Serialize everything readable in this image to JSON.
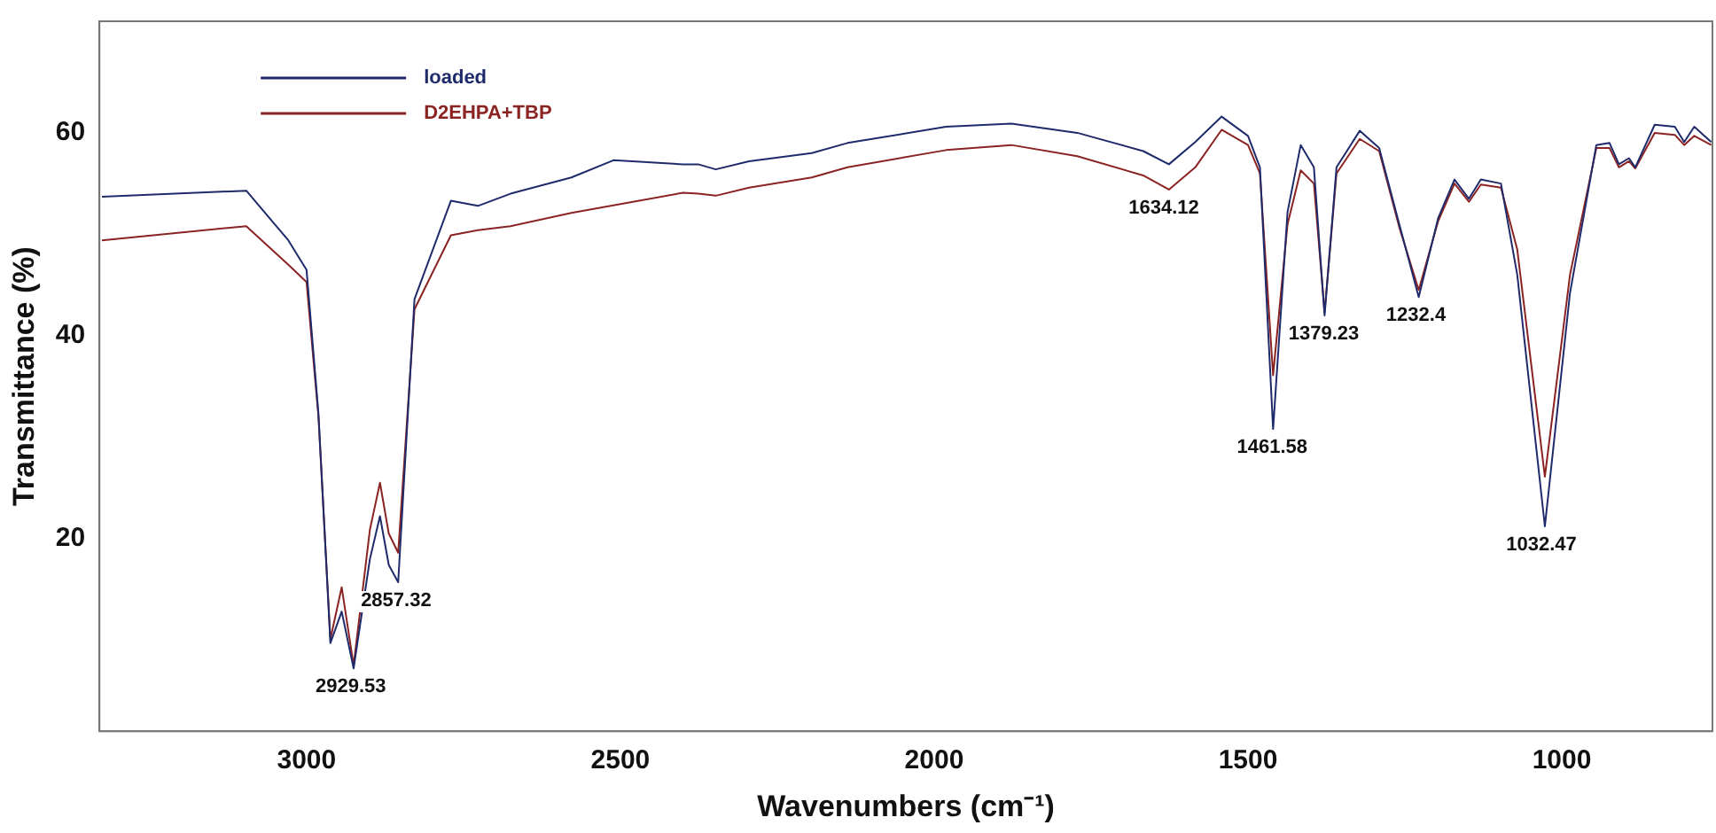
{
  "chart_data": {
    "type": "line",
    "xlabel": "Wavenumbers (cm⁻¹)",
    "ylabel": "Transmittance (%)",
    "xlim": [
      3330,
      760
    ],
    "xticks": [
      3000,
      2500,
      2000,
      1500,
      1000
    ],
    "ylim": [
      1,
      71
    ],
    "yticks": [
      20,
      40,
      60
    ],
    "grid": false,
    "legend": "top left",
    "marker": "none",
    "line_style": "solid",
    "series": [
      {
        "name": "loaded",
        "color": "#1f2a6b",
        "x": [
          3326,
          3096,
          3029,
          3000,
          2981,
          2962,
          2944,
          2925,
          2899,
          2883,
          2869,
          2854,
          2828,
          2770,
          2727,
          2675,
          2578,
          2511,
          2400,
          2376,
          2348,
          2295,
          2195,
          2138,
          1981,
          1877,
          1772,
          1667,
          1626,
          1584,
          1542,
          1500,
          1481,
          1460,
          1437,
          1416,
          1395,
          1378,
          1359,
          1322,
          1291,
          1259,
          1228,
          1197,
          1171,
          1148,
          1129,
          1097,
          1071,
          1027,
          987,
          945,
          924,
          909,
          893,
          883,
          852,
          820,
          805,
          789,
          762
        ],
        "values": [
          53.7,
          54.3,
          49.4,
          46.5,
          32.3,
          9.7,
          12.8,
          7.2,
          18,
          22.2,
          17.4,
          15.7,
          43.6,
          53.3,
          52.8,
          54,
          55.6,
          57.3,
          56.9,
          56.9,
          56.4,
          57.2,
          58,
          59,
          60.6,
          60.9,
          60,
          58.2,
          56.9,
          59.1,
          61.6,
          59.7,
          56.6,
          30.8,
          52.2,
          58.8,
          56.6,
          42,
          56.6,
          60.2,
          58.5,
          51,
          43.8,
          51.6,
          55.4,
          53.5,
          55.4,
          55,
          46,
          21.2,
          44.2,
          58.8,
          59,
          56.9,
          57.5,
          56.6,
          60.8,
          60.6,
          59.1,
          60.6,
          59.1
        ]
      },
      {
        "name": "D2EHPA+TBP",
        "color": "#8b2323",
        "x": [
          3326,
          3096,
          3029,
          3000,
          2981,
          2962,
          2944,
          2925,
          2899,
          2883,
          2869,
          2854,
          2828,
          2770,
          2727,
          2675,
          2578,
          2400,
          2376,
          2348,
          2295,
          2195,
          2138,
          1981,
          1877,
          1772,
          1667,
          1626,
          1584,
          1542,
          1500,
          1481,
          1460,
          1437,
          1416,
          1395,
          1378,
          1359,
          1322,
          1291,
          1259,
          1228,
          1197,
          1171,
          1148,
          1129,
          1097,
          1071,
          1027,
          987,
          945,
          924,
          909,
          893,
          883,
          852,
          820,
          805,
          789,
          762
        ],
        "values": [
          49.4,
          50.8,
          47,
          45.3,
          32,
          10.1,
          15.2,
          7.5,
          20.9,
          25.5,
          20.5,
          18.6,
          42.6,
          49.9,
          50.4,
          50.8,
          52.1,
          54.1,
          54,
          53.8,
          54.6,
          55.6,
          56.6,
          58.3,
          58.8,
          57.7,
          55.8,
          54.4,
          56.6,
          60.3,
          58.8,
          56,
          36.1,
          51,
          56.3,
          55,
          42.3,
          56,
          59.4,
          58.2,
          50.7,
          44.5,
          51.3,
          55,
          53.2,
          54.9,
          54.6,
          48.5,
          26.1,
          46,
          58.5,
          58.5,
          56.6,
          57.2,
          56.5,
          60,
          59.8,
          58.8,
          59.7,
          58.8
        ]
      }
    ],
    "annotations": [
      {
        "text": "2929.53",
        "x": 2929.53,
        "y": 7.2
      },
      {
        "text": "2857.32",
        "x": 2857.32,
        "y": 15.7
      },
      {
        "text": "1634.12",
        "x": 1634.12,
        "y": 54.4
      },
      {
        "text": "1461.58",
        "x": 1461.58,
        "y": 30.8
      },
      {
        "text": "1379.23",
        "x": 1379.23,
        "y": 42
      },
      {
        "text": "1232.4",
        "x": 1232.4,
        "y": 43.8
      },
      {
        "text": "1032.47",
        "x": 1032.47,
        "y": 21.2
      }
    ]
  }
}
